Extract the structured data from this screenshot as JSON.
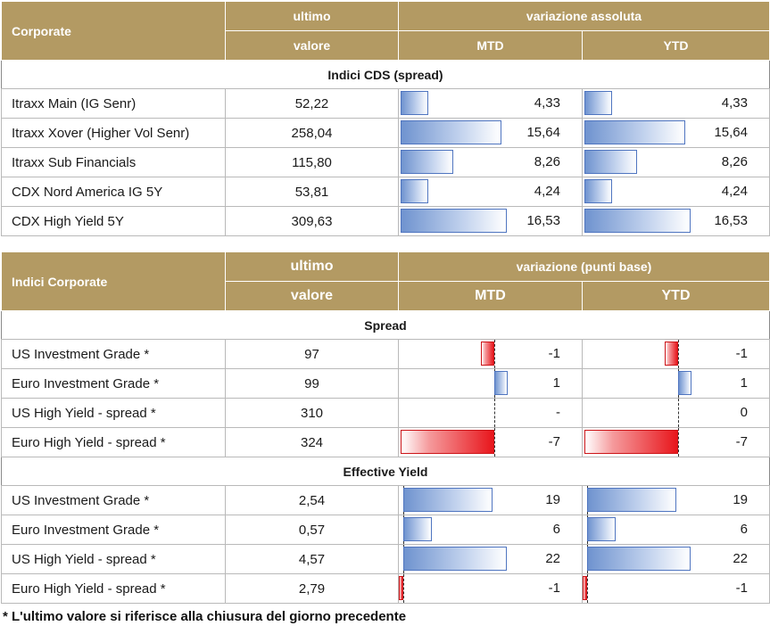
{
  "table_cds": {
    "header": {
      "corner": "Corporate",
      "ultimo": "ultimo",
      "valore": "valore",
      "group": "variazione assoluta",
      "mtd": "MTD",
      "ytd": "YTD"
    },
    "section": "Indici CDS (spread)",
    "rows": [
      {
        "name": "Itraxx Main (IG Senr)",
        "value": "52,22",
        "mtd": "4,33",
        "ytd": "4,33",
        "mtd_v": 4.33,
        "ytd_v": 4.33
      },
      {
        "name": "Itraxx Xover (Higher Vol Senr)",
        "value": "258,04",
        "mtd": "15,64",
        "ytd": "15,64",
        "mtd_v": 15.64,
        "ytd_v": 15.64
      },
      {
        "name": "Itraxx Sub Financials",
        "value": "115,80",
        "mtd": "8,26",
        "ytd": "8,26",
        "mtd_v": 8.26,
        "ytd_v": 8.26
      },
      {
        "name": "CDX Nord America IG 5Y",
        "value": "53,81",
        "mtd": "4,24",
        "ytd": "4,24",
        "mtd_v": 4.24,
        "ytd_v": 4.24
      },
      {
        "name": "CDX High Yield 5Y",
        "value": "309,63",
        "mtd": "16,53",
        "ytd": "16,53",
        "mtd_v": 16.53,
        "ytd_v": 16.53
      }
    ]
  },
  "table_corp": {
    "header": {
      "corner": "Indici Corporate",
      "ultimo": "ultimo",
      "valore": "valore",
      "group": "variazione (punti base)",
      "mtd": "MTD",
      "ytd": "YTD"
    },
    "section_spread": "Spread",
    "spread_rows": [
      {
        "name": "US Investment Grade *",
        "value": "97",
        "mtd": "-1",
        "ytd": "-1",
        "mtd_v": -1,
        "ytd_v": -1
      },
      {
        "name": "Euro Investment Grade *",
        "value": "99",
        "mtd": "1",
        "ytd": "1",
        "mtd_v": 1,
        "ytd_v": 1
      },
      {
        "name": "US High Yield  - spread *",
        "value": "310",
        "mtd": "-",
        "ytd": "0",
        "mtd_v": 0,
        "ytd_v": 0
      },
      {
        "name": "Euro High Yield  - spread *",
        "value": "324",
        "mtd": "-7",
        "ytd": "-7",
        "mtd_v": -7,
        "ytd_v": -7
      }
    ],
    "section_yield": "Effective Yield",
    "yield_rows": [
      {
        "name": "US Investment Grade *",
        "value": "2,54",
        "mtd": "19",
        "ytd": "19",
        "mtd_v": 19,
        "ytd_v": 19
      },
      {
        "name": "Euro Investment Grade *",
        "value": "0,57",
        "mtd": "6",
        "ytd": "6",
        "mtd_v": 6,
        "ytd_v": 6
      },
      {
        "name": "US High Yield  - spread *",
        "value": "4,57",
        "mtd": "22",
        "ytd": "22",
        "mtd_v": 22,
        "ytd_v": 22
      },
      {
        "name": "Euro High Yield  - spread *",
        "value": "2,79",
        "mtd": "-1",
        "ytd": "-1",
        "mtd_v": -1,
        "ytd_v": -1
      }
    ]
  },
  "footnote": "* L'ultimo valore si riferisce alla chiusura del giorno precedente",
  "colors": {
    "header_bg": "#b39a63",
    "positive_bar": "#6f93cf",
    "negative_bar": "#e8161c"
  }
}
